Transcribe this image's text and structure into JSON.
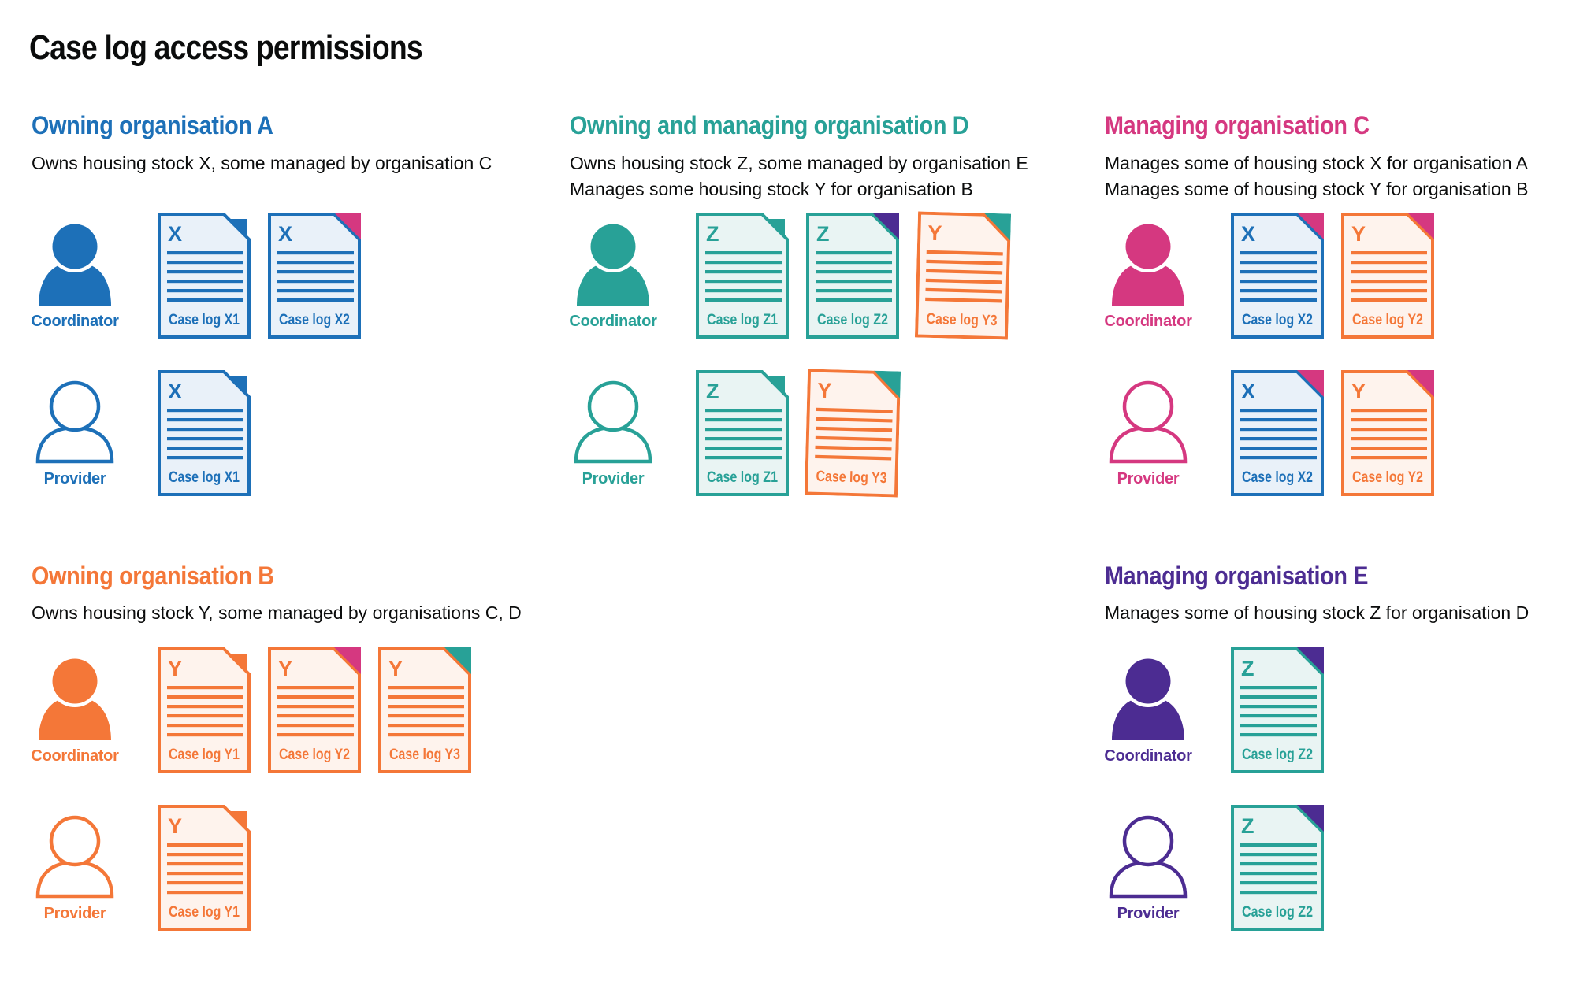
{
  "title": "Case log access permissions",
  "colors": {
    "blue": "#1d70b8",
    "teal": "#28a197",
    "pink": "#d53880",
    "orange": "#f47738",
    "purple": "#4c2c92",
    "text": "#0b0c0c",
    "tint_blue": "#e9f1f9",
    "tint_teal": "#e9f4f3",
    "tint_orange": "#fef3ed"
  },
  "sections": [
    {
      "id": "owning-organisation-a",
      "heading": "Owning organisation A",
      "color": "#1d70b8",
      "col": 0,
      "band": "top",
      "description": [
        "Owns housing stock X, some managed by organisation C"
      ],
      "rows": [
        {
          "role": "Coordinator",
          "person": "filled",
          "docs": [
            {
              "letter": "X",
              "label": "Case log X1",
              "color": "#1d70b8",
              "tint": "#e9f1f9",
              "fold": "#1d70b8",
              "fold_style": "own"
            },
            {
              "letter": "X",
              "label": "Case log X2",
              "color": "#1d70b8",
              "tint": "#e9f1f9",
              "fold": "#d53880",
              "fold_style": "other"
            }
          ]
        },
        {
          "role": "Provider",
          "person": "outline",
          "docs": [
            {
              "letter": "X",
              "label": "Case log X1",
              "color": "#1d70b8",
              "tint": "#e9f1f9",
              "fold": "#1d70b8",
              "fold_style": "own"
            }
          ]
        }
      ]
    },
    {
      "id": "owning-and-managing-organisation-d",
      "heading": "Owning and managing organisation D",
      "color": "#28a197",
      "col": 1,
      "band": "top",
      "description": [
        "Owns housing stock Z, some managed by organisation E",
        "Manages some housing stock Y for organisation B"
      ],
      "rows": [
        {
          "role": "Coordinator",
          "person": "filled",
          "docs": [
            {
              "letter": "Z",
              "label": "Case log Z1",
              "color": "#28a197",
              "tint": "#e9f4f3",
              "fold": "#28a197",
              "fold_style": "own"
            },
            {
              "letter": "Z",
              "label": "Case log Z2",
              "color": "#28a197",
              "tint": "#e9f4f3",
              "fold": "#4c2c92",
              "fold_style": "other"
            },
            {
              "letter": "Y",
              "label": "Case log Y3",
              "color": "#f47738",
              "tint": "#fef3ed",
              "fold": "#28a197",
              "fold_style": "other",
              "tilt": 1.5
            }
          ]
        },
        {
          "role": "Provider",
          "person": "outline",
          "docs": [
            {
              "letter": "Z",
              "label": "Case log Z1",
              "color": "#28a197",
              "tint": "#e9f4f3",
              "fold": "#28a197",
              "fold_style": "own"
            },
            {
              "letter": "Y",
              "label": "Case log Y3",
              "color": "#f47738",
              "tint": "#fef3ed",
              "fold": "#28a197",
              "fold_style": "other",
              "tilt": 1.5
            }
          ]
        }
      ]
    },
    {
      "id": "managing-organisation-c",
      "heading": "Managing organisation C",
      "color": "#d53880",
      "col": 2,
      "band": "top",
      "description": [
        "Manages some of housing stock X for organisation A",
        "Manages some of housing stock Y for organisation B"
      ],
      "rows": [
        {
          "role": "Coordinator",
          "person": "filled",
          "docs": [
            {
              "letter": "X",
              "label": "Case log X2",
              "color": "#1d70b8",
              "tint": "#e9f1f9",
              "fold": "#d53880",
              "fold_style": "other"
            },
            {
              "letter": "Y",
              "label": "Case log Y2",
              "color": "#f47738",
              "tint": "#fef3ed",
              "fold": "#d53880",
              "fold_style": "other"
            }
          ]
        },
        {
          "role": "Provider",
          "person": "outline",
          "docs": [
            {
              "letter": "X",
              "label": "Case log X2",
              "color": "#1d70b8",
              "tint": "#e9f1f9",
              "fold": "#d53880",
              "fold_style": "other"
            },
            {
              "letter": "Y",
              "label": "Case log Y2",
              "color": "#f47738",
              "tint": "#fef3ed",
              "fold": "#d53880",
              "fold_style": "other"
            }
          ]
        }
      ]
    },
    {
      "id": "owning-organisation-b",
      "heading": "Owning organisation B",
      "color": "#f47738",
      "col": 0,
      "band": "bottom",
      "description": [
        "Owns housing stock Y, some managed by organisations C, D"
      ],
      "rows": [
        {
          "role": "Coordinator",
          "person": "filled",
          "docs": [
            {
              "letter": "Y",
              "label": "Case log Y1",
              "color": "#f47738",
              "tint": "#fef3ed",
              "fold": "#f47738",
              "fold_style": "own"
            },
            {
              "letter": "Y",
              "label": "Case log Y2",
              "color": "#f47738",
              "tint": "#fef3ed",
              "fold": "#d53880",
              "fold_style": "other"
            },
            {
              "letter": "Y",
              "label": "Case log Y3",
              "color": "#f47738",
              "tint": "#fef3ed",
              "fold": "#28a197",
              "fold_style": "other"
            }
          ]
        },
        {
          "role": "Provider",
          "person": "outline",
          "docs": [
            {
              "letter": "Y",
              "label": "Case log Y1",
              "color": "#f47738",
              "tint": "#fef3ed",
              "fold": "#f47738",
              "fold_style": "own"
            }
          ]
        }
      ]
    },
    {
      "id": "managing-organisation-e",
      "heading": "Managing organisation E",
      "color": "#4c2c92",
      "col": 2,
      "band": "bottom",
      "description": [
        "Manages some of housing stock Z for organisation D"
      ],
      "rows": [
        {
          "role": "Coordinator",
          "person": "filled",
          "docs": [
            {
              "letter": "Z",
              "label": "Case log Z2",
              "color": "#28a197",
              "tint": "#e9f4f3",
              "fold": "#4c2c92",
              "fold_style": "other"
            }
          ]
        },
        {
          "role": "Provider",
          "person": "outline",
          "docs": [
            {
              "letter": "Z",
              "label": "Case log Z2",
              "color": "#28a197",
              "tint": "#e9f4f3",
              "fold": "#4c2c92",
              "fold_style": "other"
            }
          ]
        }
      ]
    }
  ]
}
